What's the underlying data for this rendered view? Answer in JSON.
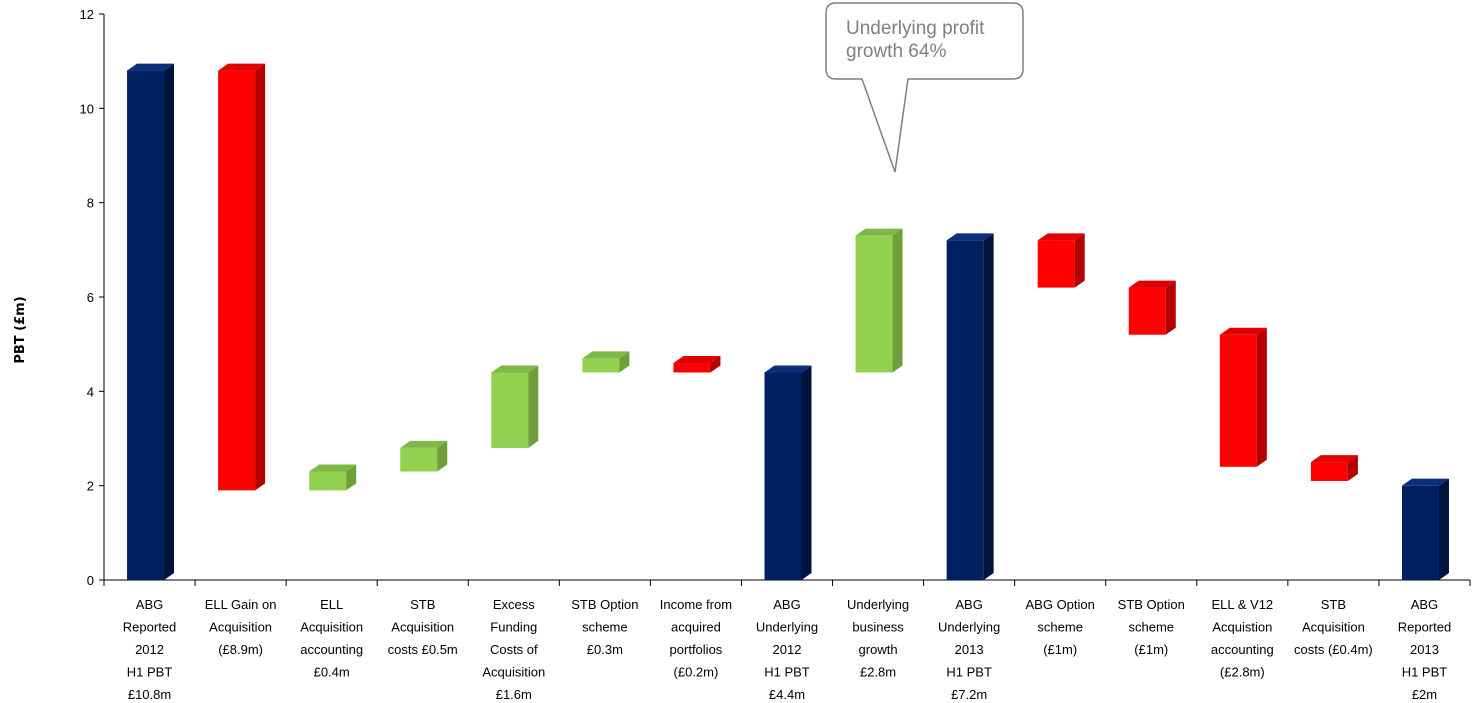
{
  "chart_data": {
    "type": "bar",
    "subtype": "waterfall-3d",
    "ylabel": "PBT (£m)",
    "ylim": [
      0,
      12
    ],
    "yticks": [
      0,
      2,
      4,
      6,
      8,
      10,
      12
    ],
    "grid": false,
    "legend": "none",
    "categories": [
      [
        "ABG",
        "Reported",
        "2012",
        "H1 PBT",
        "£10.8m"
      ],
      [
        "ELL Gain on",
        "Acquisition",
        "(£8.9m)"
      ],
      [
        "ELL",
        "Acquisition",
        "accounting",
        "£0.4m"
      ],
      [
        "STB",
        "Acquisition",
        "costs £0.5m"
      ],
      [
        "Excess",
        "Funding",
        "Costs of",
        "Acquisition",
        "£1.6m"
      ],
      [
        "STB Option",
        "scheme",
        "£0.3m"
      ],
      [
        "Income from",
        "acquired",
        "portfolios",
        "(£0.2m)"
      ],
      [
        "ABG",
        "Underlying",
        "2012",
        "H1 PBT",
        "£4.4m"
      ],
      [
        "Underlying",
        "business",
        "growth",
        "£2.8m"
      ],
      [
        "ABG",
        "Underlying",
        "2013",
        "H1 PBT",
        "£7.2m"
      ],
      [
        "ABG Option",
        "scheme",
        "(£1m)"
      ],
      [
        "STB Option",
        "scheme",
        "(£1m)"
      ],
      [
        "ELL & V12",
        "Acquistion",
        "accounting",
        "(£2.8m)"
      ],
      [
        "STB",
        "Acquisition",
        "costs (£0.4m)"
      ],
      [
        "ABG",
        "Reported",
        "2013",
        "H1 PBT",
        "£2m"
      ]
    ],
    "bars": [
      {
        "kind": "total",
        "low": 0,
        "high": 10.8
      },
      {
        "kind": "decrease",
        "low": 1.9,
        "high": 10.8
      },
      {
        "kind": "increase",
        "low": 1.9,
        "high": 2.3
      },
      {
        "kind": "increase",
        "low": 2.3,
        "high": 2.8
      },
      {
        "kind": "increase",
        "low": 2.8,
        "high": 4.4
      },
      {
        "kind": "increase",
        "low": 4.4,
        "high": 4.7
      },
      {
        "kind": "decrease",
        "low": 4.4,
        "high": 4.6
      },
      {
        "kind": "total",
        "low": 0,
        "high": 4.4
      },
      {
        "kind": "increase",
        "low": 4.4,
        "high": 7.3
      },
      {
        "kind": "total",
        "low": 0,
        "high": 7.2
      },
      {
        "kind": "decrease",
        "low": 6.2,
        "high": 7.2
      },
      {
        "kind": "decrease",
        "low": 5.2,
        "high": 6.2
      },
      {
        "kind": "decrease",
        "low": 2.4,
        "high": 5.2
      },
      {
        "kind": "decrease",
        "low": 2.1,
        "high": 2.5
      },
      {
        "kind": "total",
        "low": 0,
        "high": 2.0
      }
    ],
    "colors": {
      "total": {
        "front": "#002060",
        "side": "#00133d",
        "top": "#0b2f78"
      },
      "decrease": {
        "front": "#ff0000",
        "side": "#b40000",
        "top": "#e00000"
      },
      "increase": {
        "front": "#92d050",
        "side": "#6f9e3a",
        "top": "#7fb846"
      }
    },
    "annotations": [
      {
        "text": [
          "Underlying profit",
          "growth 64%"
        ],
        "target_category_index": 8
      }
    ]
  }
}
